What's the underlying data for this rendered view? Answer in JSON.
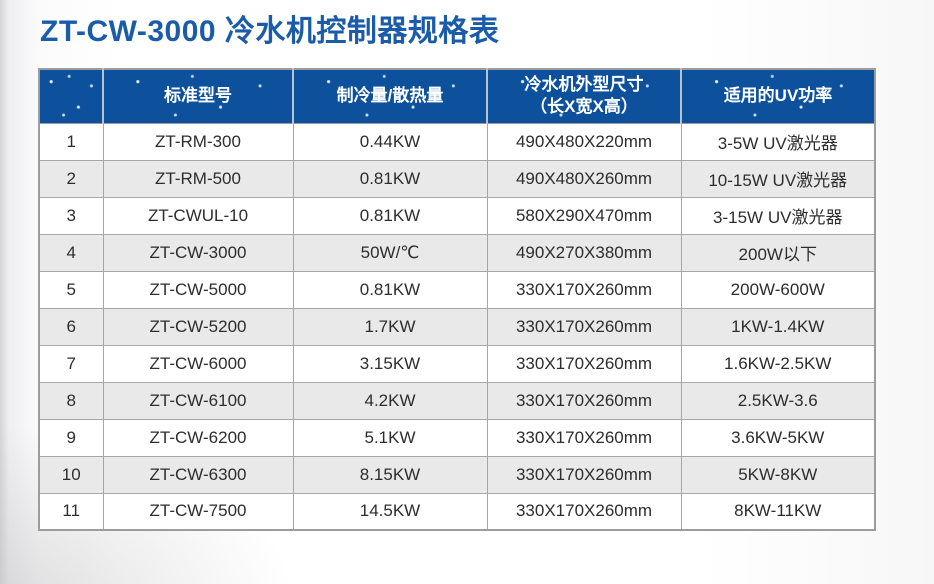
{
  "page": {
    "title": "ZT-CW-3000 冷水机控制器规格表"
  },
  "colors": {
    "title_blue": "#1a5caa",
    "header_blue": "#0d509c",
    "alt_row_gray": "#e9e9ea",
    "border_gray": "#a6a6a8",
    "body_text": "#2d2d2d"
  },
  "table": {
    "columns": [
      {
        "key": "no",
        "label": ""
      },
      {
        "key": "model",
        "label": "标准型号"
      },
      {
        "key": "cap",
        "label": "制冷量/散热量"
      },
      {
        "key": "size",
        "label": "冷水机外型尺寸\n（长X宽X高）"
      },
      {
        "key": "uv",
        "label": "适用的UV功率"
      }
    ],
    "rows": [
      {
        "no": "1",
        "model": "ZT-RM-300",
        "cap": "0.44KW",
        "size": "490X480X220mm",
        "uv": "3-5W UV激光器"
      },
      {
        "no": "2",
        "model": "ZT-RM-500",
        "cap": "0.81KW",
        "size": "490X480X260mm",
        "uv": "10-15W UV激光器"
      },
      {
        "no": "3",
        "model": "ZT-CWUL-10",
        "cap": "0.81KW",
        "size": "580X290X470mm",
        "uv": "3-15W UV激光器"
      },
      {
        "no": "4",
        "model": "ZT-CW-3000",
        "cap": "50W/℃",
        "size": "490X270X380mm",
        "uv": "200W以下"
      },
      {
        "no": "5",
        "model": "ZT-CW-5000",
        "cap": "0.81KW",
        "size": "330X170X260mm",
        "uv": "200W-600W"
      },
      {
        "no": "6",
        "model": "ZT-CW-5200",
        "cap": "1.7KW",
        "size": "330X170X260mm",
        "uv": "1KW-1.4KW"
      },
      {
        "no": "7",
        "model": "ZT-CW-6000",
        "cap": "3.15KW",
        "size": "330X170X260mm",
        "uv": "1.6KW-2.5KW"
      },
      {
        "no": "8",
        "model": "ZT-CW-6100",
        "cap": "4.2KW",
        "size": "330X170X260mm",
        "uv": "2.5KW-3.6"
      },
      {
        "no": "9",
        "model": "ZT-CW-6200",
        "cap": "5.1KW",
        "size": "330X170X260mm",
        "uv": "3.6KW-5KW"
      },
      {
        "no": "10",
        "model": "ZT-CW-6300",
        "cap": "8.15KW",
        "size": "330X170X260mm",
        "uv": "5KW-8KW"
      },
      {
        "no": "11",
        "model": "ZT-CW-7500",
        "cap": "14.5KW",
        "size": "330X170X260mm",
        "uv": "8KW-11KW"
      }
    ]
  }
}
